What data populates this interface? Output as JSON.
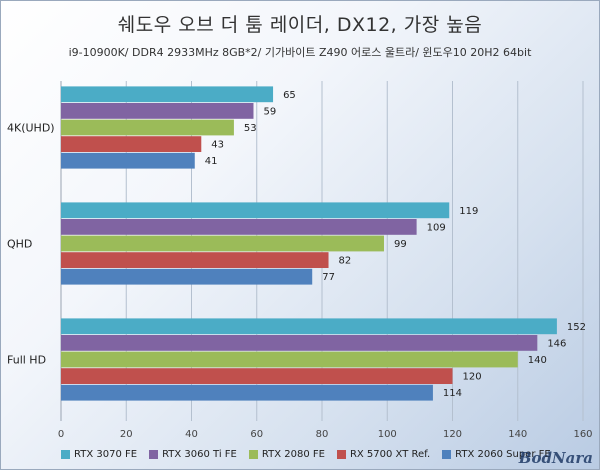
{
  "chart_data": {
    "type": "bar",
    "orientation": "horizontal",
    "title": "쉐도우 오브 더 툼 레이더, DX12, 가장 높음",
    "subtitle": "i9-10900K/ DDR4 2933MHz 8GB*2/ 기가바이트 Z490 어로스 울트라/ 윈도우10 20H2 64bit",
    "categories": [
      "4K(UHD)",
      "QHD",
      "Full HD"
    ],
    "series": [
      {
        "name": "RTX 3070 FE",
        "color": "#4bacc6",
        "values": [
          65,
          119,
          152
        ]
      },
      {
        "name": "RTX 3060 Ti FE",
        "color": "#8064a2",
        "values": [
          59,
          109,
          146
        ]
      },
      {
        "name": "RTX 2080 FE",
        "color": "#9bbb59",
        "values": [
          53,
          99,
          140
        ]
      },
      {
        "name": "RX 5700 XT Ref.",
        "color": "#c0504d",
        "values": [
          43,
          82,
          120
        ]
      },
      {
        "name": "RTX 2060 Super FE",
        "color": "#4f81bd",
        "values": [
          41,
          77,
          114
        ]
      }
    ],
    "xlim": [
      0,
      160
    ],
    "xticks": [
      0,
      20,
      40,
      60,
      80,
      100,
      120,
      140,
      160
    ],
    "grid": true,
    "legend": "bottom"
  },
  "watermark": "BodNara"
}
